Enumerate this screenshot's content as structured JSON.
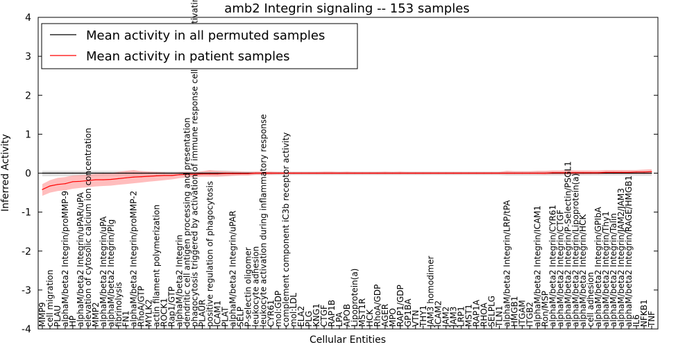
{
  "chart_data": {
    "type": "line",
    "title": "amb2 Integrin signaling -- 153 samples",
    "xlabel": "Cellular Entities",
    "ylabel": "Inferred Activity",
    "ylim": [
      -4,
      4
    ],
    "yticks": [
      -4,
      -3,
      -2,
      -1,
      0,
      1,
      2,
      3,
      4
    ],
    "grid": false,
    "legend_position": "top-left",
    "categories": [
      "MMP9",
      "cell migration",
      "PLAU",
      "alphaM/beta2 Integrin/proMMP-9",
      "HP",
      "alphaM/beta2 Integrin/uPAR/uPA",
      "elevation of cytosolic calcium ion concentration",
      "MMP2",
      "alphaM/beta2 Integrin/uPA",
      "alphaM/beta2 Integrin/Plg",
      "fibrinolysis",
      "FN1",
      "alphaM/beta2 Integrin/proMMP-2",
      "RhoA/GTP",
      "MYLK2",
      "actin filament polymerization",
      "ROCK1",
      "Rap1/GTP",
      "alphaM/beta2 Integrin",
      "dendritic cell antigen processing and presentation",
      "phagocytosis triggered by activation of immune response cell surface activating receptor",
      "PLAUR",
      "positive regulation of phagocytosis",
      "ICAM1",
      "PLAT",
      "alphaM/beta2 Integrin/uPAR",
      "SELP",
      "P-selectin oligomer",
      "leukocyte adhesion",
      "leukocyte activation during inflammatory response",
      "CYR61",
      "mol:GDP",
      "complement component iC3b receptor activity",
      "mol:LDL",
      "ELA2",
      "PLG",
      "KNG1",
      "CTGF",
      "RAP1B",
      "LPA",
      "APOB",
      "Lipoprotein(a)",
      "MST1R",
      "HCK",
      "RhoA/GDP",
      "AGER",
      "MPO",
      "RAP1/GDP",
      "GP1BA",
      "VTN",
      "THY1",
      "JAM3 homodimer",
      "ICAM2",
      "JAM2",
      "JAM3",
      "LRP1",
      "MST1",
      "RAP1A",
      "RHOA",
      "SELPLG",
      "TLN1",
      "alphaM/beta2 Integrin/LRP/tPA",
      "HMGB1",
      "ITGAM",
      "ITGB2",
      "alphaM/beta2 Integrin/ICAM1",
      "Ron/MSP",
      "alphaM/beta2 Integrin/CYR61",
      "alphaM/beta2 Integrin/CTGF",
      "alphaM/beta2 Integrin/P-Selectin/PSGL1",
      "alphaM/beta2 Integrin/Lipoprotein(a)",
      "alphaM/beta2 Integrin/HCK",
      "cell adhesion",
      "alphaM/beta2 Integrin/GPIbA",
      "alphaM/beta2 Integrin/Thy1",
      "alphaM/beta2 Integrin/Talin",
      "alphaM/beta2 Integrin/JAM2/JAM3",
      "alphaM/beta2 Integrin/RAGE/HMGB1",
      "IL6",
      "NFKB1",
      "TNF"
    ],
    "series": [
      {
        "name": "Mean activity in all permuted samples",
        "color": "#000000",
        "band_color": "#bbbbbb",
        "values": [
          0.0,
          0.0,
          0.0,
          0.0,
          0.0,
          0.0,
          0.0,
          0.0,
          0.0,
          0.0,
          0.0,
          0.0,
          0.0,
          0.0,
          0.0,
          0.0,
          0.0,
          0.0,
          0.0,
          0.0,
          0.0,
          0.0,
          0.0,
          0.0,
          0.0,
          0.0,
          0.0,
          0.0,
          0.0,
          0.0,
          0.0,
          0.0,
          0.0,
          0.0,
          0.0,
          0.0,
          0.0,
          0.0,
          0.0,
          0.0,
          0.0,
          0.0,
          0.0,
          0.0,
          0.0,
          0.0,
          0.0,
          0.0,
          0.0,
          0.0,
          0.0,
          0.0,
          0.0,
          0.0,
          0.0,
          0.0,
          0.0,
          0.0,
          0.0,
          0.0,
          0.0,
          0.0,
          0.0,
          0.0,
          0.0,
          0.0,
          0.0,
          0.0,
          0.0,
          0.0,
          0.0,
          0.0,
          0.0,
          0.0,
          0.0,
          0.0,
          0.0,
          0.0,
          0.0,
          0.0,
          0.0
        ],
        "band_low": [
          -0.08,
          -0.08,
          -0.08,
          -0.08,
          -0.08,
          -0.08,
          -0.08,
          -0.08,
          -0.08,
          -0.08,
          -0.08,
          -0.08,
          -0.08,
          -0.08,
          -0.07,
          -0.07,
          -0.07,
          -0.07,
          -0.06,
          -0.06,
          -0.06,
          -0.06,
          -0.07,
          -0.08,
          -0.08,
          -0.07,
          -0.06,
          -0.06,
          -0.05,
          -0.05,
          -0.05,
          -0.05,
          -0.05,
          -0.05,
          -0.05,
          -0.05,
          -0.05,
          -0.05,
          -0.05,
          -0.05,
          -0.05,
          -0.05,
          -0.05,
          -0.05,
          -0.05,
          -0.05,
          -0.05,
          -0.05,
          -0.05,
          -0.05,
          -0.05,
          -0.05,
          -0.05,
          -0.05,
          -0.05,
          -0.05,
          -0.05,
          -0.05,
          -0.05,
          -0.05,
          -0.05,
          -0.06,
          -0.06,
          -0.06,
          -0.06,
          -0.06,
          -0.06,
          -0.06,
          -0.06,
          -0.06,
          -0.06,
          -0.06,
          -0.06,
          -0.06,
          -0.06,
          -0.06,
          -0.06,
          -0.06,
          -0.07,
          -0.07,
          -0.07
        ],
        "band_high": [
          0.06,
          0.06,
          0.06,
          0.06,
          0.06,
          0.06,
          0.06,
          0.06,
          0.06,
          0.06,
          0.06,
          0.06,
          0.06,
          0.06,
          0.05,
          0.05,
          0.05,
          0.05,
          0.05,
          0.05,
          0.05,
          0.05,
          0.06,
          0.07,
          0.07,
          0.06,
          0.05,
          0.05,
          0.04,
          0.04,
          0.04,
          0.04,
          0.04,
          0.04,
          0.04,
          0.04,
          0.04,
          0.04,
          0.04,
          0.04,
          0.04,
          0.04,
          0.04,
          0.04,
          0.04,
          0.04,
          0.04,
          0.04,
          0.04,
          0.04,
          0.04,
          0.04,
          0.04,
          0.04,
          0.04,
          0.04,
          0.04,
          0.04,
          0.04,
          0.04,
          0.04,
          0.05,
          0.05,
          0.05,
          0.05,
          0.05,
          0.05,
          0.05,
          0.05,
          0.05,
          0.05,
          0.05,
          0.05,
          0.05,
          0.05,
          0.05,
          0.05,
          0.05,
          0.06,
          0.06,
          0.06
        ]
      },
      {
        "name": "Mean activity in patient samples",
        "color": "#ff0000",
        "band_color": "#ff9999",
        "values": [
          -0.42,
          -0.33,
          -0.29,
          -0.27,
          -0.22,
          -0.21,
          -0.19,
          -0.17,
          -0.17,
          -0.16,
          -0.14,
          -0.12,
          -0.1,
          -0.09,
          -0.08,
          -0.07,
          -0.06,
          -0.06,
          -0.04,
          -0.03,
          -0.03,
          -0.02,
          -0.02,
          -0.02,
          -0.01,
          -0.01,
          -0.01,
          -0.01,
          0.0,
          0.0,
          0.0,
          0.0,
          0.0,
          0.0,
          0.0,
          0.0,
          0.0,
          0.0,
          0.0,
          0.0,
          0.0,
          0.0,
          0.0,
          0.0,
          0.0,
          0.0,
          0.0,
          0.0,
          0.0,
          0.0,
          0.0,
          0.0,
          0.0,
          0.0,
          0.0,
          0.0,
          0.0,
          0.0,
          0.0,
          0.0,
          0.0,
          0.0,
          0.0,
          0.0,
          0.0,
          0.0,
          0.0,
          0.01,
          0.01,
          0.01,
          0.01,
          0.01,
          0.01,
          0.01,
          0.02,
          0.02,
          0.02,
          0.02,
          0.03,
          0.03,
          0.04
        ],
        "band_low": [
          -0.58,
          -0.5,
          -0.46,
          -0.44,
          -0.4,
          -0.38,
          -0.36,
          -0.34,
          -0.33,
          -0.32,
          -0.3,
          -0.28,
          -0.26,
          -0.24,
          -0.22,
          -0.2,
          -0.18,
          -0.16,
          -0.13,
          -0.11,
          -0.1,
          -0.09,
          -0.09,
          -0.09,
          -0.08,
          -0.07,
          -0.06,
          -0.06,
          -0.04,
          -0.04,
          -0.04,
          -0.03,
          -0.03,
          -0.03,
          -0.03,
          -0.03,
          -0.03,
          -0.03,
          -0.03,
          -0.03,
          -0.03,
          -0.03,
          -0.03,
          -0.03,
          -0.03,
          -0.03,
          -0.03,
          -0.03,
          -0.03,
          -0.03,
          -0.03,
          -0.03,
          -0.03,
          -0.03,
          -0.03,
          -0.03,
          -0.03,
          -0.03,
          -0.03,
          -0.03,
          -0.03,
          -0.03,
          -0.03,
          -0.03,
          -0.03,
          -0.03,
          -0.04,
          -0.03,
          -0.03,
          -0.03,
          -0.03,
          -0.03,
          -0.03,
          -0.03,
          -0.02,
          -0.02,
          -0.02,
          -0.02,
          -0.02,
          -0.02,
          -0.02
        ],
        "band_high": [
          -0.28,
          -0.18,
          -0.12,
          -0.1,
          -0.06,
          -0.05,
          -0.04,
          -0.02,
          -0.01,
          0.0,
          0.03,
          0.06,
          0.08,
          0.05,
          0.04,
          0.03,
          0.02,
          0.01,
          0.02,
          0.03,
          0.02,
          0.05,
          0.08,
          0.06,
          0.05,
          0.04,
          0.04,
          0.03,
          0.04,
          0.04,
          0.04,
          0.03,
          0.03,
          0.03,
          0.03,
          0.03,
          0.03,
          0.04,
          0.04,
          0.03,
          0.04,
          0.03,
          0.03,
          0.03,
          0.03,
          0.04,
          0.03,
          0.04,
          0.03,
          0.03,
          0.03,
          0.03,
          0.03,
          0.03,
          0.03,
          0.03,
          0.03,
          0.03,
          0.03,
          0.03,
          0.03,
          0.06,
          0.05,
          0.05,
          0.05,
          0.06,
          0.06,
          0.07,
          0.07,
          0.08,
          0.07,
          0.07,
          0.07,
          0.07,
          0.08,
          0.08,
          0.08,
          0.08,
          0.08,
          0.09,
          0.1
        ]
      }
    ]
  }
}
